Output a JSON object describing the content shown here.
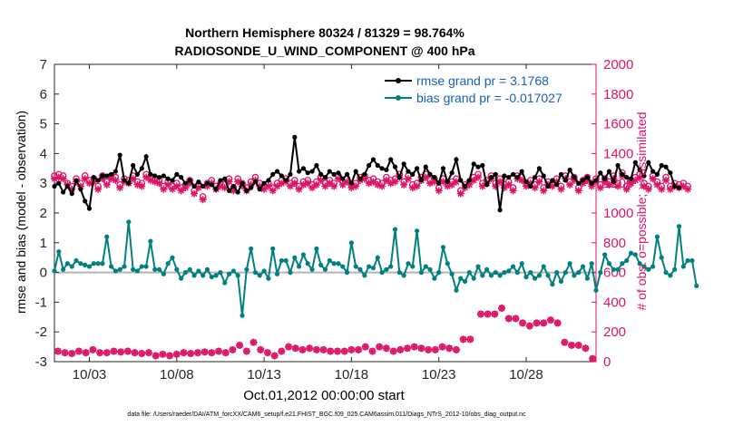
{
  "chart_data": {
    "type": "line",
    "title_line1": "Northern Hemisphere 80324 / 81329 = 98.764%",
    "title_line2": "RADIOSONDE_U_WIND_COMPONENT @ 400 hPa",
    "ylabel_left": "rmse and bias (model - observation)",
    "ylabel_right": "# of obs: o=possible; ×=assimilated",
    "xlabel": "Oct.01,2012 00:00:00 start",
    "footnote": "data file: /Users/raeder/DAI/ATM_forcXX/CAM6_setup/f.e21.FHIST_BGC.f09_025.CAM6assim.011/Diags_NTrS_2012-10/obs_diag_output.nc",
    "xlim": [
      1,
      32
    ],
    "ylim_left": [
      -3,
      7
    ],
    "ylim_right": [
      0,
      2000
    ],
    "x_ticks": [
      3,
      8,
      13,
      18,
      23,
      28
    ],
    "x_tick_labels": [
      "10/03",
      "10/08",
      "10/13",
      "10/18",
      "10/23",
      "10/28"
    ],
    "y_ticks_left": [
      -3,
      -2,
      -1,
      0,
      1,
      2,
      3,
      4,
      5,
      6,
      7
    ],
    "y_ticks_right": [
      0,
      200,
      400,
      600,
      800,
      1000,
      1200,
      1400,
      1600,
      1800,
      2000
    ],
    "grid": false,
    "legend_position": "top-right",
    "colors": {
      "rmse": "#000000",
      "bias": "#00807f",
      "obs": "#dd1466",
      "right_axis": "#dd1466",
      "zero_line": "#b4b4b4",
      "legend_text": "#1560bd"
    },
    "x_start": 1.0,
    "x_step": 0.25,
    "series": [
      {
        "name": "rmse grand pr = 3.1768",
        "axis": "left",
        "values": [
          2.9,
          3.0,
          2.7,
          2.9,
          2.65,
          3.1,
          2.8,
          2.4,
          2.15,
          3.2,
          3.1,
          3.25,
          3.25,
          3.3,
          3.4,
          3.95,
          3.1,
          3.0,
          3.6,
          3.3,
          3.5,
          3.9,
          3.3,
          3.25,
          3.2,
          3.25,
          3.15,
          3.1,
          3.3,
          3.2,
          3.0,
          3.1,
          2.9,
          3.05,
          2.9,
          3.0,
          2.95,
          2.8,
          3.1,
          3.15,
          2.75,
          2.9,
          2.7,
          3.0,
          2.75,
          2.85,
          3.05,
          2.8,
          3.0,
          3.1,
          3.3,
          3.4,
          3.25,
          3.1,
          3.3,
          4.55,
          3.4,
          3.5,
          3.35,
          3.4,
          3.6,
          3.3,
          3.2,
          3.4,
          3.3,
          3.35,
          3.15,
          3.3,
          3.0,
          3.4,
          3.15,
          3.3,
          3.6,
          3.8,
          3.6,
          3.5,
          3.45,
          3.8,
          3.55,
          3.2,
          3.65,
          3.4,
          3.3,
          3.5,
          3.1,
          3.55,
          3.3,
          3.2,
          3.0,
          3.5,
          3.05,
          3.35,
          3.8,
          3.1,
          2.9,
          3.1,
          3.65,
          3.55,
          3.6,
          2.95,
          3.2,
          3.3,
          2.1,
          3.25,
          3.2,
          3.3,
          3.2,
          3.4,
          3.05,
          2.9,
          3.2,
          3.5,
          3.25,
          2.9,
          3.1,
          2.95,
          3.3,
          3.1,
          3.45,
          3.2,
          3.0,
          3.1,
          3.2,
          3.0,
          3.1,
          3.35,
          3.15,
          3.4,
          3.05,
          3.6,
          3.3,
          3.2,
          3.15,
          3.7,
          3.45,
          3.25,
          3.7,
          3.4,
          3.3,
          3.6,
          3.55,
          3.35,
          2.9,
          2.85
        ]
      },
      {
        "name": "bias grand pr = -0.017027",
        "axis": "left",
        "values": [
          0.05,
          0.7,
          0.1,
          0.3,
          0.2,
          0.4,
          0.3,
          0.25,
          0.2,
          0.3,
          0.3,
          0.3,
          1.2,
          0.2,
          0.05,
          0.1,
          0.2,
          1.7,
          0.1,
          0.05,
          0.2,
          0.2,
          1.05,
          0.1,
          0.1,
          -0.05,
          0.3,
          0.5,
          0.1,
          -0.2,
          0.0,
          0.1,
          -0.1,
          0.05,
          -0.1,
          0.1,
          -0.15,
          -0.1,
          0.0,
          -0.35,
          -0.05,
          0.05,
          -0.1,
          -1.45,
          0.1,
          0.8,
          0.0,
          -0.1,
          0.05,
          -0.2,
          0.8,
          -0.05,
          0.4,
          0.4,
          0.0,
          0.5,
          0.2,
          0.6,
          0.3,
          0.1,
          0.8,
          0.25,
          0.1,
          0.4,
          0.3,
          0.3,
          0.2,
          0.0,
          1.0,
          0.2,
          0.1,
          -0.1,
          0.2,
          0.15,
          0.5,
          0.0,
          0.1,
          0.2,
          1.45,
          0.0,
          -0.1,
          0.3,
          0.2,
          1.4,
          0.0,
          0.2,
          0.1,
          -0.2,
          0.0,
          0.85,
          0.3,
          -0.05,
          -0.6,
          -0.2,
          -0.3,
          0.0,
          -0.2,
          0.2,
          -0.1,
          0.1,
          -0.1,
          0.0,
          -0.1,
          0.0,
          0.05,
          0.2,
          0.0,
          0.3,
          -0.15,
          0.0,
          -0.2,
          -0.1,
          0.2,
          -0.1,
          -0.4,
          0.0,
          -0.3,
          0.0,
          0.3,
          -0.1,
          0.0,
          0.2,
          -0.2,
          0.3,
          -0.6,
          0.0,
          0.6,
          0.3,
          0.1,
          0.1,
          0.3,
          0.4,
          0.65,
          0.6,
          0.3,
          0.2,
          0.1,
          0.2,
          1.2,
          0.5,
          0.0,
          -0.1,
          0.1,
          1.55,
          0.2,
          0.4,
          0.4,
          -0.45
        ]
      },
      {
        "name": "possible",
        "axis": "right",
        "marker": "o",
        "values": [
          1250,
          1260,
          1250,
          1200,
          1180,
          1230,
          1200,
          1250,
          1220,
          1230,
          1180,
          1250,
          1210,
          1250,
          1240,
          1190,
          1230,
          1220,
          1250,
          1210,
          1200,
          1260,
          1240,
          1230,
          1220,
          1180,
          1210,
          1180,
          1200,
          1170,
          1190,
          1220,
          1150,
          1190,
          1110,
          1200,
          1220,
          1180,
          1200,
          1190,
          1230,
          1170,
          1230,
          1200,
          1170,
          1210,
          1240,
          1200,
          1180,
          1200,
          1170,
          1200,
          1220,
          1230,
          1200,
          1220,
          1180,
          1210,
          1220,
          1190,
          1210,
          1240,
          1200,
          1220,
          1200,
          1250,
          1210,
          1230,
          1190,
          1200,
          1240,
          1250,
          1220,
          1230,
          1210,
          1200,
          1240,
          1220,
          1230,
          1260,
          1210,
          1250,
          1190,
          1200,
          1240,
          1260,
          1220,
          1230,
          1170,
          1230,
          1200,
          1210,
          1230,
          1150,
          1190,
          1210,
          1240,
          1260,
          1200,
          1220,
          1250,
          1200,
          1230,
          1190,
          1210,
          1170,
          1250,
          1240,
          1200,
          1220,
          1190,
          1230,
          1170,
          1210,
          1200,
          1230,
          1180,
          1250,
          1210,
          1240,
          1170,
          1220,
          1240,
          1200,
          1230,
          1190,
          1230,
          1210,
          1250,
          1200,
          1270,
          1180,
          1220,
          1240,
          1260,
          1200,
          1180,
          1250,
          1210,
          1180,
          1240,
          1180,
          1200,
          1190,
          1200,
          1180
        ]
      },
      {
        "name": "assimilated",
        "axis": "right",
        "marker": "x",
        "values": [
          1230,
          1240,
          1230,
          1190,
          1160,
          1210,
          1180,
          1230,
          1200,
          1210,
          1160,
          1230,
          1190,
          1230,
          1220,
          1170,
          1210,
          1200,
          1230,
          1190,
          1180,
          1240,
          1220,
          1210,
          1200,
          1160,
          1190,
          1160,
          1180,
          1150,
          1170,
          1200,
          1130,
          1170,
          1090,
          1180,
          1200,
          1160,
          1180,
          1170,
          1210,
          1150,
          1210,
          1180,
          1150,
          1190,
          1220,
          1180,
          1160,
          1180,
          1150,
          1180,
          1200,
          1210,
          1180,
          1200,
          1160,
          1190,
          1200,
          1170,
          1190,
          1220,
          1180,
          1200,
          1180,
          1230,
          1190,
          1210,
          1170,
          1180,
          1220,
          1230,
          1200,
          1210,
          1190,
          1180,
          1220,
          1200,
          1210,
          1240,
          1190,
          1230,
          1170,
          1180,
          1220,
          1240,
          1200,
          1210,
          1150,
          1210,
          1180,
          1190,
          1210,
          1130,
          1170,
          1190,
          1220,
          1240,
          1180,
          1200,
          1230,
          1180,
          1210,
          1170,
          1190,
          1150,
          1230,
          1220,
          1180,
          1200,
          1170,
          1210,
          1150,
          1190,
          1180,
          1210,
          1160,
          1230,
          1190,
          1220,
          1150,
          1200,
          1220,
          1180,
          1210,
          1170,
          1210,
          1190,
          1230,
          1180,
          1250,
          1160,
          1200,
          1220,
          1240,
          1180,
          1160,
          1230,
          1190,
          1160,
          1220,
          1160,
          1180,
          1170,
          1180,
          1160
        ]
      },
      {
        "name": "possible (bottom)",
        "axis": "right",
        "marker": "o",
        "values_sparse": [
          [
            1.2,
            70
          ],
          [
            1.6,
            60
          ],
          [
            2.0,
            55
          ],
          [
            2.4,
            70
          ],
          [
            2.8,
            60
          ],
          [
            3.2,
            80
          ],
          [
            3.6,
            60
          ],
          [
            4.0,
            60
          ],
          [
            4.4,
            70
          ],
          [
            4.8,
            65
          ],
          [
            5.2,
            70
          ],
          [
            5.6,
            60
          ],
          [
            6.0,
            55
          ],
          [
            6.4,
            60
          ],
          [
            6.8,
            40
          ],
          [
            7.2,
            50
          ],
          [
            7.6,
            40
          ],
          [
            8.0,
            50
          ],
          [
            8.4,
            60
          ],
          [
            8.8,
            55
          ],
          [
            9.2,
            60
          ],
          [
            9.6,
            65
          ],
          [
            10.0,
            60
          ],
          [
            10.4,
            70
          ],
          [
            10.8,
            60
          ],
          [
            11.2,
            80
          ],
          [
            11.6,
            110
          ],
          [
            12.0,
            70
          ],
          [
            12.4,
            130
          ],
          [
            12.8,
            80
          ],
          [
            13.2,
            60
          ],
          [
            13.6,
            40
          ],
          [
            14.0,
            70
          ],
          [
            14.4,
            100
          ],
          [
            14.8,
            90
          ],
          [
            15.2,
            80
          ],
          [
            15.6,
            90
          ],
          [
            16.0,
            80
          ],
          [
            16.4,
            80
          ],
          [
            16.8,
            70
          ],
          [
            17.2,
            70
          ],
          [
            17.6,
            70
          ],
          [
            18.0,
            80
          ],
          [
            18.4,
            80
          ],
          [
            18.8,
            100
          ],
          [
            19.2,
            70
          ],
          [
            19.6,
            100
          ],
          [
            20.0,
            90
          ],
          [
            20.4,
            70
          ],
          [
            20.8,
            80
          ],
          [
            21.2,
            90
          ],
          [
            21.6,
            100
          ],
          [
            22.0,
            90
          ],
          [
            22.4,
            80
          ],
          [
            22.8,
            80
          ],
          [
            23.2,
            100
          ],
          [
            23.6,
            90
          ],
          [
            24.0,
            80
          ],
          [
            24.4,
            150
          ],
          [
            24.8,
            150
          ],
          [
            25.4,
            320
          ],
          [
            25.8,
            320
          ],
          [
            26.2,
            320
          ],
          [
            26.6,
            360
          ],
          [
            27.0,
            290
          ],
          [
            27.4,
            290
          ],
          [
            27.8,
            260
          ],
          [
            28.2,
            240
          ],
          [
            28.6,
            260
          ],
          [
            29.0,
            260
          ],
          [
            29.4,
            280
          ],
          [
            29.8,
            260
          ],
          [
            30.2,
            130
          ],
          [
            30.6,
            110
          ],
          [
            31.0,
            110
          ],
          [
            31.4,
            90
          ],
          [
            31.8,
            20
          ]
        ]
      }
    ]
  }
}
